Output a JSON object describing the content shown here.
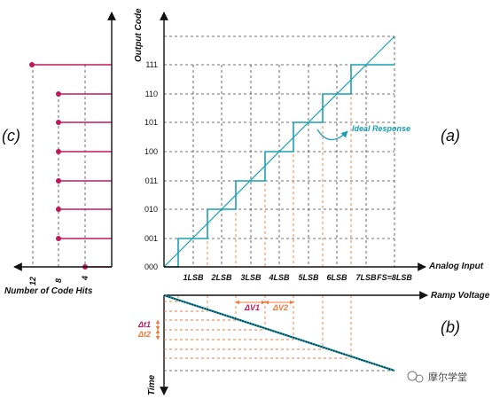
{
  "panel_labels": {
    "a": "(a)",
    "b": "(b)",
    "c": "(c)"
  },
  "transfer": {
    "y_axis_title": "Output Code",
    "x_axis_title": "Analog Input",
    "codes": [
      "000",
      "001",
      "010",
      "011",
      "100",
      "101",
      "110",
      "111"
    ],
    "x_ticks": [
      "1LSB",
      "2LSB",
      "3LSB",
      "4LSB",
      "5LSB",
      "6LSB",
      "7LSB",
      "FS=8LSB"
    ],
    "ideal_label": "Ideal Response"
  },
  "ramp": {
    "x_axis_title": "Ramp Voltage",
    "y_axis_title": "Time",
    "delta_v1": "ΔV1",
    "delta_v2": "ΔV2",
    "delta_t1": "Δt1",
    "delta_t2": "Δt2"
  },
  "histogram": {
    "x_axis_title": "Number of Code Hits",
    "x_ticks": [
      "12",
      "8",
      "4"
    ],
    "hits_by_code": [
      {
        "code": "000",
        "hits": 4
      },
      {
        "code": "001",
        "hits": 8
      },
      {
        "code": "010",
        "hits": 8
      },
      {
        "code": "011",
        "hits": 8
      },
      {
        "code": "100",
        "hits": 8
      },
      {
        "code": "101",
        "hits": 8
      },
      {
        "code": "110",
        "hits": 8
      },
      {
        "code": "111",
        "hits": 12
      }
    ]
  },
  "watermark": {
    "text": "摩尔学堂"
  },
  "colors": {
    "staircase": "#1aa0b4",
    "stems": "#c2185b",
    "ramp_guides": "#f07a3c"
  }
}
